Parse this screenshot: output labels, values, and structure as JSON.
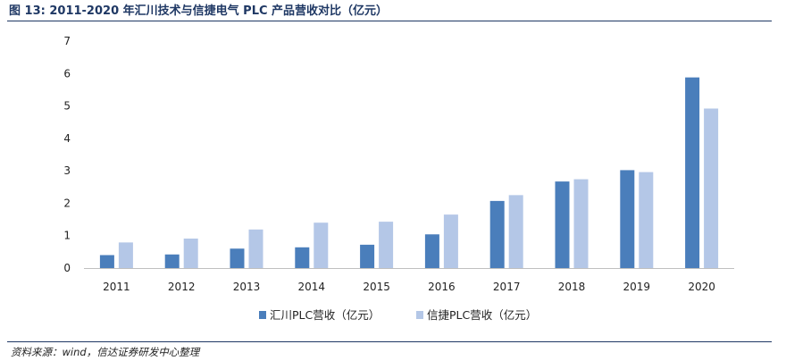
{
  "header": {
    "figure_label": "图 13:",
    "title": "2011-2020 年汇川技术与信捷电气 PLC 产品营收对比（亿元）"
  },
  "footer": {
    "source": "资料来源：wind，信达证券研发中心整理"
  },
  "chart_data": {
    "type": "bar",
    "categories": [
      "2011",
      "2012",
      "2013",
      "2014",
      "2015",
      "2016",
      "2017",
      "2018",
      "2019",
      "2020"
    ],
    "series": [
      {
        "name": "汇川PLC营收（亿元）",
        "color": "#4a7ebb",
        "values": [
          0.4,
          0.42,
          0.6,
          0.64,
          0.72,
          1.04,
          2.07,
          2.67,
          3.02,
          5.88
        ]
      },
      {
        "name": "信捷PLC营收（亿元）",
        "color": "#b4c7e7",
        "values": [
          0.79,
          0.91,
          1.19,
          1.4,
          1.43,
          1.65,
          2.25,
          2.74,
          2.96,
          4.92
        ]
      }
    ],
    "ylim": [
      0,
      7
    ],
    "yticks": [
      "0",
      "1",
      "2",
      "3",
      "4",
      "5",
      "6",
      "7"
    ],
    "xlabel": "",
    "ylabel": "",
    "grid": false,
    "legend_position": "bottom"
  }
}
